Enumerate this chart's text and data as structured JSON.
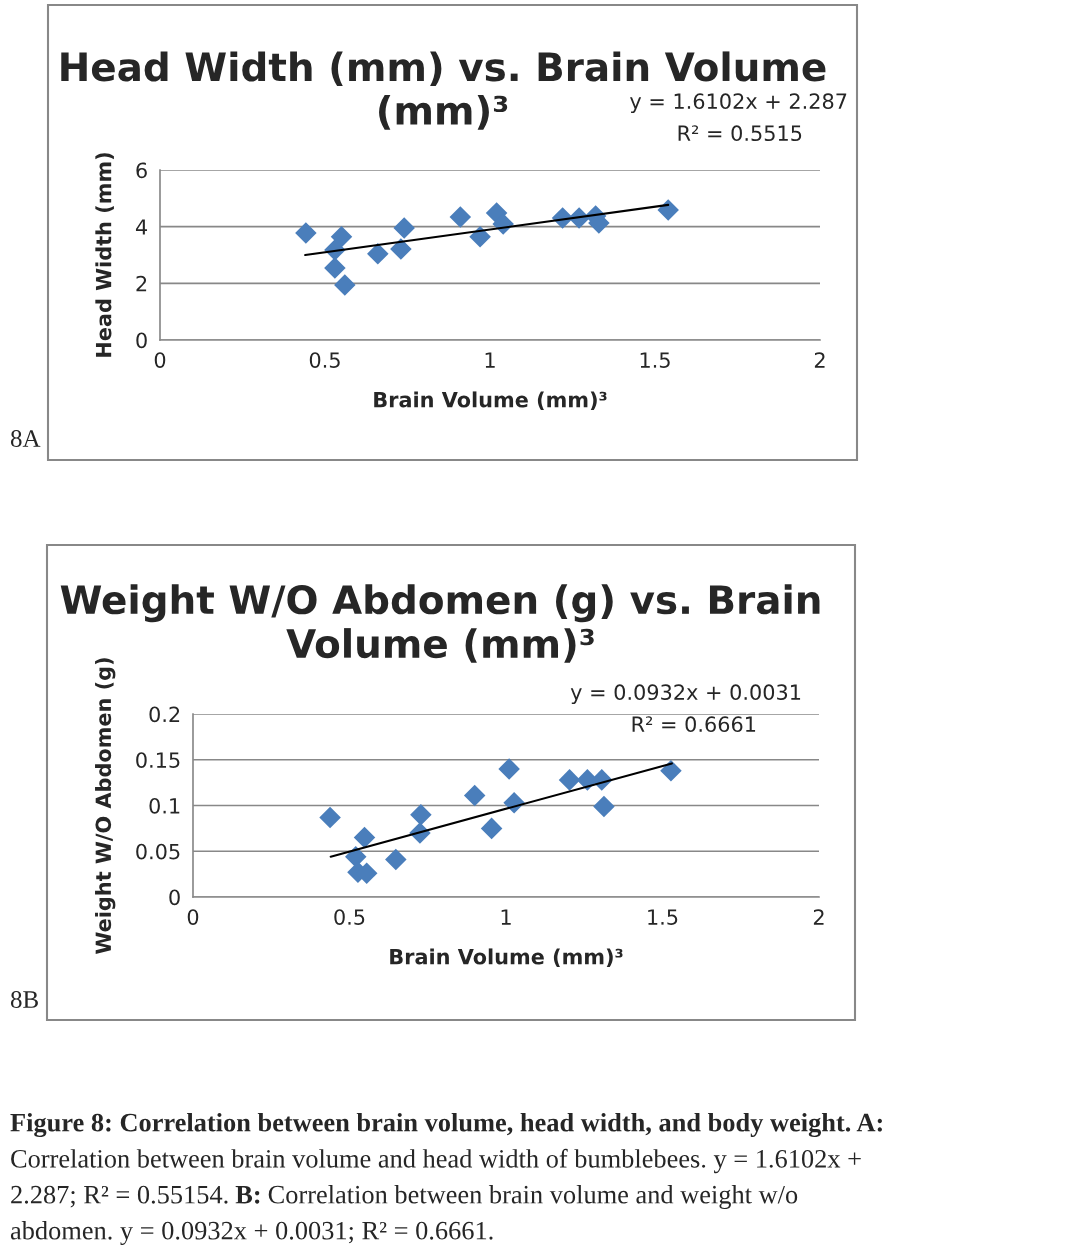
{
  "chart_data": [
    {
      "type": "scatter",
      "title": "Head Width (mm) vs. Brain Volume (mm)³",
      "xlabel": "Brain Volume (mm)³",
      "ylabel": "Head Width (mm)",
      "xlim": [
        0,
        2
      ],
      "xticks": [
        0,
        0.5,
        1,
        1.5,
        2
      ],
      "ylim": [
        0,
        6
      ],
      "yticks": [
        0,
        2,
        4,
        6
      ],
      "grid": "y",
      "legend": false,
      "marker": "diamond",
      "series": [
        {
          "color": "#4a7ebb",
          "x": [
            0.442,
            0.53,
            0.55,
            0.53,
            0.56,
            0.66,
            0.73,
            0.74,
            0.91,
            0.97,
            1.02,
            1.04,
            1.22,
            1.27,
            1.32,
            1.33,
            1.54
          ],
          "values": [
            3.78,
            3.18,
            3.64,
            2.54,
            1.94,
            3.04,
            3.21,
            3.95,
            4.34,
            3.64,
            4.48,
            4.09,
            4.31,
            4.31,
            4.38,
            4.13,
            4.59
          ]
        },
        {
          "type": "line",
          "color": "#000000",
          "marker": "none",
          "x": [
            0.44,
            1.54
          ],
          "values": [
            3.0,
            4.77
          ]
        }
      ],
      "annotations": [
        "y = 1.6102x + 2.287",
        "R² = 0.5515",
        "8A"
      ]
    },
    {
      "type": "scatter",
      "title": "Weight W/O Abdomen (g) vs. Brain Volume (mm)³",
      "xlabel": "Brain Volume (mm)³",
      "ylabel": "Weight W/O Abdomen (g)",
      "xlim": [
        0,
        2
      ],
      "xticks": [
        0,
        0.5,
        1,
        1.5,
        2
      ],
      "ylim": [
        0,
        0.2
      ],
      "yticks": [
        0,
        0.05,
        0.1,
        0.15,
        0.2
      ],
      "grid": "y",
      "legend": false,
      "marker": "diamond",
      "series": [
        {
          "color": "#4a7ebb",
          "x": [
            0.438,
            0.548,
            0.52,
            0.527,
            0.555,
            0.648,
            0.728,
            0.725,
            0.9,
            0.954,
            1.01,
            1.026,
            1.203,
            1.26,
            1.306,
            1.313,
            1.527
          ],
          "values": [
            0.087,
            0.065,
            0.044,
            0.027,
            0.026,
            0.041,
            0.09,
            0.07,
            0.111,
            0.075,
            0.14,
            0.103,
            0.128,
            0.128,
            0.128,
            0.099,
            0.138
          ]
        },
        {
          "type": "line",
          "color": "#000000",
          "marker": "none",
          "x": [
            0.44,
            1.53
          ],
          "values": [
            0.044,
            0.146
          ]
        }
      ],
      "annotations": [
        "y = 0.0932x + 0.0031",
        "R² = 0.6661",
        "8B",
        "Figure 8: Correlation between brain volume, head width, and body weight. A:",
        "Correlation between brain volume and head width of bumblebees. y = 1.6102x +",
        "2.287; R² = 0.55154.",
        "B:",
        "Correlation between brain volume and weight w/o",
        "abdomen. y = 0.0932x + 0.0031; R² = 0.6661."
      ]
    }
  ]
}
